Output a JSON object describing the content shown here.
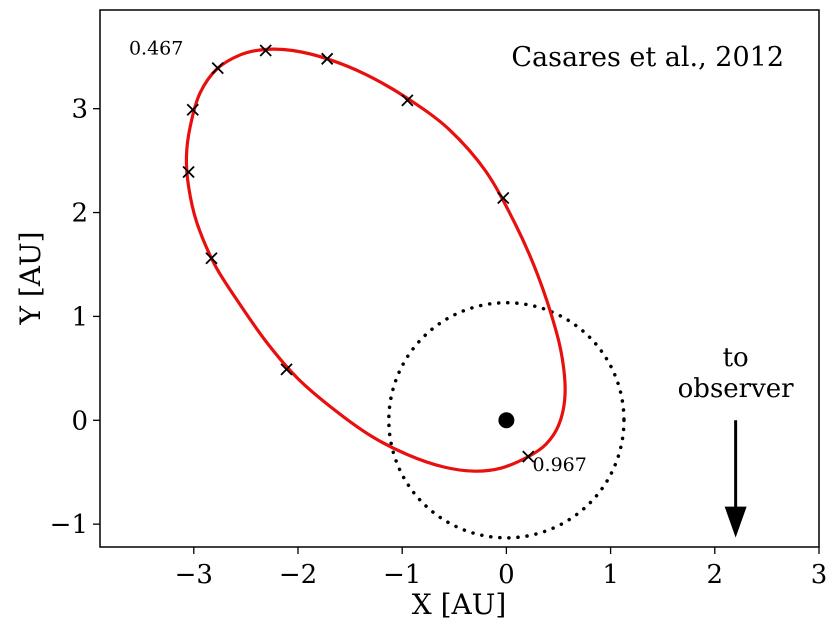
{
  "chart_data": {
    "type": "scatter",
    "title": "Casares et al., 2012",
    "xlabel": "X [AU]",
    "ylabel": "Y [AU]",
    "xlim": [
      -3.9,
      3.0
    ],
    "ylim": [
      -1.22,
      3.95
    ],
    "xticks": [
      -3,
      -2,
      -1,
      0,
      1,
      2,
      3
    ],
    "xtick_labels": [
      "−3",
      "−2",
      "−1",
      "0",
      "1",
      "2",
      "3"
    ],
    "yticks": [
      -1,
      0,
      1,
      2,
      3
    ],
    "ytick_labels": [
      "−1",
      "0",
      "1",
      "2",
      "3"
    ],
    "grid": false,
    "orbit": {
      "color": "#e8100e",
      "points": [
        [
          0.21,
          -0.35
        ],
        [
          0.38,
          -0.23
        ],
        [
          0.5,
          -0.05
        ],
        [
          0.56,
          0.2
        ],
        [
          0.55,
          0.5
        ],
        [
          0.48,
          0.85
        ],
        [
          0.3,
          1.4
        ],
        [
          0.08,
          1.9
        ],
        [
          -0.2,
          2.4
        ],
        [
          -0.55,
          2.8
        ],
        [
          -0.95,
          3.1
        ],
        [
          -1.35,
          3.33
        ],
        [
          -1.72,
          3.48
        ],
        [
          -2.05,
          3.56
        ],
        [
          -2.32,
          3.57
        ],
        [
          -2.55,
          3.52
        ],
        [
          -2.78,
          3.38
        ],
        [
          -2.94,
          3.15
        ],
        [
          -3.03,
          2.85
        ],
        [
          -3.07,
          2.55
        ],
        [
          -3.05,
          2.25
        ],
        [
          -2.97,
          1.9
        ],
        [
          -2.8,
          1.5
        ],
        [
          -2.58,
          1.15
        ],
        [
          -2.3,
          0.75
        ],
        [
          -2.0,
          0.4
        ],
        [
          -1.65,
          0.1
        ],
        [
          -1.3,
          -0.15
        ],
        [
          -0.95,
          -0.33
        ],
        [
          -0.6,
          -0.45
        ],
        [
          -0.3,
          -0.49
        ],
        [
          -0.05,
          -0.46
        ],
        [
          0.21,
          -0.35
        ]
      ]
    },
    "phase_markers": [
      [
        0.21,
        -0.35
      ],
      [
        -2.11,
        0.49
      ],
      [
        -2.83,
        1.56
      ],
      [
        -3.05,
        2.39
      ],
      [
        -3.01,
        2.99
      ],
      [
        -2.77,
        3.39
      ],
      [
        -2.31,
        3.56
      ],
      [
        -1.72,
        3.48
      ],
      [
        -0.95,
        3.08
      ],
      [
        -0.03,
        2.14
      ]
    ],
    "annotations": [
      {
        "text": "0.467",
        "x": -3.1,
        "y": 3.52,
        "anchor": "end"
      },
      {
        "text": "0.967",
        "x": 0.25,
        "y": -0.49,
        "anchor": "start"
      }
    ],
    "circle": {
      "center": [
        0,
        0
      ],
      "radius": 1.13,
      "style": "dotted"
    },
    "central_object": {
      "x": 0,
      "y": 0
    },
    "observer": {
      "label_lines": [
        "to",
        "observer"
      ],
      "x": 2.2,
      "y_start": 0.0,
      "y_end": -1.12
    }
  }
}
